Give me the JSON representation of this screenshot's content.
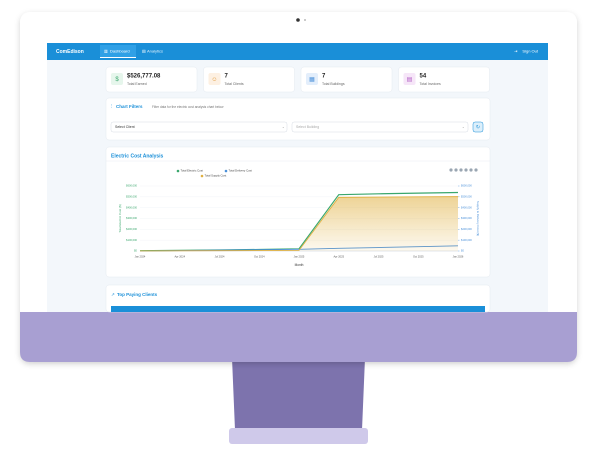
{
  "navbar": {
    "brand": "ComEdison",
    "tabs": [
      "Dashboard",
      "Analytics"
    ],
    "sign_out": "Sign Out"
  },
  "stats": [
    {
      "value": "$526,777.08",
      "label": "Total Earned"
    },
    {
      "value": 7,
      "label": "Total Clients"
    },
    {
      "value": 7,
      "label": "Total Buildings"
    },
    {
      "value": 54,
      "label": "Total Invoices"
    }
  ],
  "filters": {
    "title": "Chart Filters",
    "description": "Filter data for the electric cost analysis chart below",
    "client_placeholder": "Select Client",
    "building_placeholder": "Select Building"
  },
  "chart": {
    "type": "line",
    "title": "Electric Cost Analysis",
    "x_title": "Month",
    "y_title": "Total Electric Cost ($)",
    "y2_title": "Supply & Delivery Cost ($)",
    "categories": [
      "Jan 2024",
      "Apr 2024",
      "Jul 2024",
      "Oct 2024",
      "Jan 2025",
      "Apr 2025",
      "Jul 2025",
      "Oct 2025",
      "Jan 2026"
    ],
    "series": [
      {
        "name": "Total Electric Cost",
        "color": "#3aa76d",
        "values": [
          2000,
          6000,
          10000,
          14000,
          20000,
          520000,
          528000,
          534000,
          540000
        ]
      },
      {
        "name": "Total Delivery Cost",
        "color": "#4a90d9",
        "axis": "y2",
        "values": [
          1000,
          4000,
          8000,
          12000,
          16000,
          25000,
          32000,
          40000,
          48000
        ]
      },
      {
        "name": "Total Supply Cost",
        "color": "#e0b040",
        "axis": "y2",
        "values": [
          1000,
          2000,
          3000,
          4000,
          6000,
          495000,
          498000,
          500000,
          502000
        ]
      }
    ],
    "ylim": [
      0,
      600000
    ],
    "yticks": [
      {
        "value": 0,
        "label": "$0"
      },
      {
        "value": 100000,
        "label": "$100,000"
      },
      {
        "value": 200000,
        "label": "$200,000"
      },
      {
        "value": 300000,
        "label": "$300,000"
      },
      {
        "value": 400000,
        "label": "$400,000"
      },
      {
        "value": 500000,
        "label": "$500,000"
      },
      {
        "value": 600000,
        "label": "$600,000"
      }
    ],
    "y2lim": [
      0,
      600000
    ],
    "y2ticks": [
      {
        "value": 0,
        "label": "$0"
      },
      {
        "value": 100000,
        "label": "$100,000"
      },
      {
        "value": 200000,
        "label": "$200,000"
      },
      {
        "value": 300000,
        "label": "$300,000"
      },
      {
        "value": 400000,
        "label": "$400,000"
      },
      {
        "value": 500000,
        "label": "$500,000"
      },
      {
        "value": 600000,
        "label": "$600,000"
      }
    ]
  },
  "top_clients": {
    "title": "Top Paying Clients"
  }
}
